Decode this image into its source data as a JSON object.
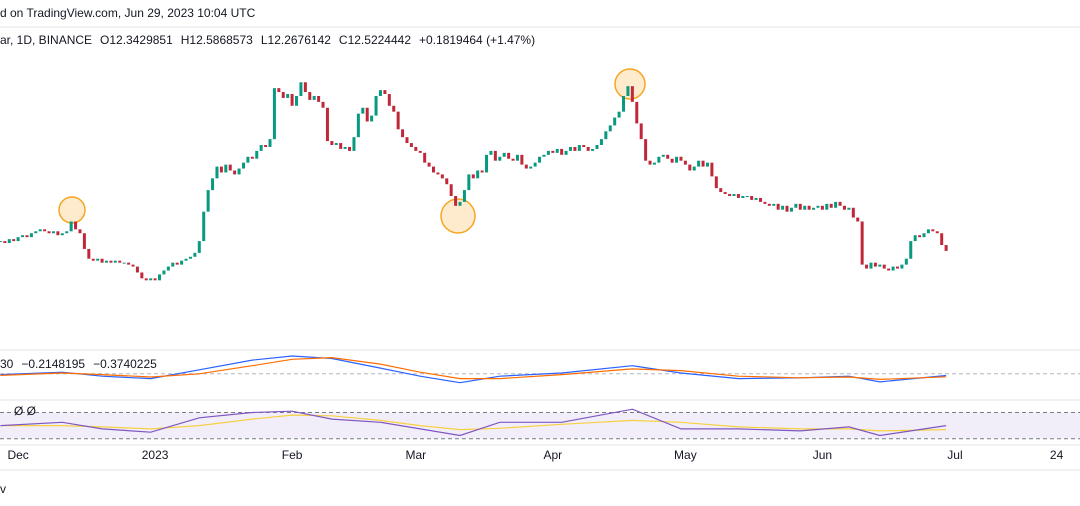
{
  "header": {
    "source": "d on TradingView.com, Jun 29, 2023 10:04 UTC",
    "symbol": "ar, 1D, BINANCE",
    "ohlc": [
      "O12.3429851",
      "H12.5868573",
      "L12.2676142",
      "C12.5224442",
      "+0.1819464 (+1.47%)"
    ],
    "footer": "v"
  },
  "chart_data": {
    "type": "candlestick",
    "up_color": "#089981",
    "down_color": "#c0283a",
    "ylim": [
      10.2,
      23.0
    ],
    "xlim": [
      -0.1,
      244.3
    ],
    "xticks": [
      {
        "value": 4,
        "label": "Dec"
      },
      {
        "value": 35,
        "label": "2023"
      },
      {
        "value": 66,
        "label": "Feb"
      },
      {
        "value": 94,
        "label": "Mar"
      },
      {
        "value": 125,
        "label": "Apr"
      },
      {
        "value": 155,
        "label": "May"
      },
      {
        "value": 186,
        "label": "Jun"
      },
      {
        "value": 216,
        "label": "Jul"
      },
      {
        "value": 239,
        "label": "24"
      }
    ],
    "close": [
      13.0,
      12.9,
      13.1,
      13.0,
      13.2,
      13.3,
      13.2,
      13.4,
      13.5,
      13.6,
      13.5,
      13.4,
      13.5,
      13.3,
      13.4,
      13.5,
      14.0,
      13.6,
      13.4,
      12.6,
      12.1,
      12.0,
      12.1,
      11.9,
      12.0,
      11.9,
      12.0,
      11.9,
      11.9,
      11.8,
      11.7,
      11.4,
      11.1,
      11.0,
      11.1,
      11.0,
      11.3,
      11.5,
      11.7,
      11.9,
      11.8,
      12.0,
      12.1,
      12.2,
      12.4,
      13.0,
      14.5,
      15.6,
      16.2,
      16.8,
      16.5,
      16.9,
      16.6,
      16.4,
      16.7,
      17.0,
      17.3,
      17.2,
      17.6,
      17.9,
      17.8,
      18.2,
      20.8,
      20.6,
      20.3,
      20.5,
      19.9,
      20.4,
      21.1,
      20.6,
      20.2,
      20.4,
      20.1,
      19.8,
      18.1,
      17.9,
      18.0,
      17.7,
      17.8,
      17.6,
      18.3,
      19.5,
      19.8,
      19.1,
      19.4,
      20.4,
      20.7,
      20.5,
      19.9,
      19.6,
      18.7,
      18.3,
      18.0,
      17.8,
      17.6,
      17.5,
      17.0,
      16.8,
      16.5,
      16.4,
      16.2,
      15.9,
      15.3,
      14.8,
      15.0,
      15.6,
      16.4,
      16.2,
      16.6,
      16.5,
      17.4,
      17.6,
      17.1,
      17.3,
      17.5,
      17.2,
      17.1,
      17.4,
      16.9,
      16.7,
      16.8,
      17.0,
      17.3,
      17.4,
      17.6,
      17.5,
      17.7,
      17.4,
      17.6,
      17.8,
      17.6,
      17.9,
      17.8,
      17.6,
      17.7,
      17.9,
      18.2,
      18.6,
      18.9,
      19.3,
      19.6,
      20.4,
      20.9,
      20.1,
      19.0,
      18.2,
      17.1,
      16.9,
      17.0,
      17.3,
      17.4,
      17.2,
      17.0,
      17.3,
      17.1,
      16.9,
      16.6,
      16.8,
      17.1,
      16.8,
      17.0,
      16.3,
      15.7,
      15.5,
      15.4,
      15.3,
      15.4,
      15.2,
      15.3,
      15.3,
      15.1,
      15.2,
      15.0,
      14.9,
      14.8,
      14.9,
      14.6,
      14.8,
      14.5,
      14.7,
      14.9,
      14.6,
      14.8,
      14.6,
      14.7,
      14.8,
      14.6,
      14.9,
      14.7,
      15.0,
      14.8,
      14.6,
      14.7,
      14.2,
      14.0,
      11.8,
      11.6,
      11.9,
      11.7,
      11.8,
      11.6,
      11.5,
      11.7,
      11.6,
      11.8,
      12.1,
      13.0,
      13.3,
      13.2,
      13.4,
      13.6,
      13.5,
      13.4,
      12.8,
      12.5
    ],
    "macd": {
      "label": "30",
      "macd_text": "−0.2148195",
      "signal_text": "−0.3740225",
      "macd_color": "#2962ff",
      "signal_color": "#ff6d00",
      "x": [
        0,
        14,
        23,
        34,
        45,
        57,
        66,
        75,
        86,
        95,
        104,
        113,
        127,
        143,
        154,
        167,
        181,
        192,
        199,
        214
      ],
      "macd": [
        -0.1,
        0.2,
        -0.3,
        -0.6,
        0.5,
        1.7,
        2.2,
        1.9,
        0.7,
        -0.3,
        -1.1,
        -0.3,
        0.1,
        1.0,
        0.1,
        -0.6,
        -0.5,
        -0.3,
        -1.0,
        -0.21
      ],
      "signal": [
        -0.2,
        0.1,
        -0.1,
        -0.4,
        0.0,
        1.0,
        1.8,
        2.0,
        1.2,
        0.2,
        -0.6,
        -0.6,
        -0.1,
        0.6,
        0.4,
        -0.3,
        -0.5,
        -0.4,
        -0.7,
        -0.37
      ],
      "ylim": [
        -3.0,
        2.7
      ],
      "zero": 0
    },
    "rsi": {
      "label": "Ø Ø",
      "color": "#7e57c2",
      "ma_color": "#f5d142",
      "x": [
        0,
        14,
        23,
        34,
        45,
        57,
        66,
        75,
        86,
        95,
        104,
        113,
        127,
        143,
        154,
        167,
        181,
        192,
        199,
        214
      ],
      "rsi": [
        50,
        55,
        45,
        40,
        62,
        70,
        72,
        60,
        55,
        45,
        35,
        55,
        55,
        75,
        45,
        45,
        42,
        48,
        35,
        50
      ],
      "ma": [
        50,
        50,
        48,
        45,
        50,
        60,
        66,
        65,
        58,
        50,
        44,
        46,
        52,
        58,
        55,
        48,
        45,
        45,
        42,
        44
      ],
      "ylim": [
        22,
        86
      ],
      "levels": [
        70,
        30
      ]
    }
  }
}
